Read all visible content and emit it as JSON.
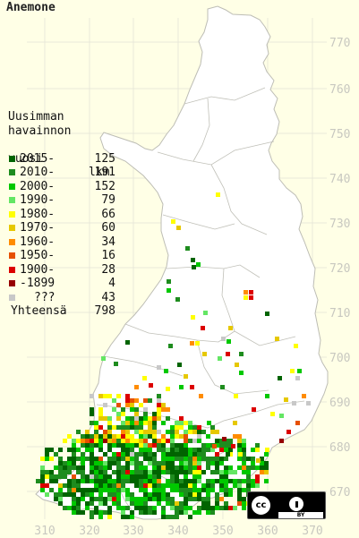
{
  "title": "Anemone",
  "legend": {
    "header": [
      "Uusimman",
      "havainnon",
      "vuosi"
    ],
    "count_header": "lkm",
    "items": [
      {
        "label": "2015-",
        "count": "125",
        "color": "#006400"
      },
      {
        "label": "2010-",
        "count": "191",
        "color": "#1e8c1e"
      },
      {
        "label": "2000-",
        "count": "152",
        "color": "#00c800"
      },
      {
        "label": "1990-",
        "count": "79",
        "color": "#64e664"
      },
      {
        "label": "1980-",
        "count": "66",
        "color": "#ffff00"
      },
      {
        "label": "1970-",
        "count": "60",
        "color": "#e6c800"
      },
      {
        "label": "1960-",
        "count": "34",
        "color": "#ff8c00"
      },
      {
        "label": "1950-",
        "count": "16",
        "color": "#e65000"
      },
      {
        "label": "1900-",
        "count": "28",
        "color": "#dc0000"
      },
      {
        "label": "-1899",
        "count": "4",
        "color": "#960000"
      },
      {
        "label": "???",
        "count": "43",
        "color": "#c8c8c8"
      }
    ],
    "total_label": "Yhteensä",
    "total_count": "798"
  },
  "axes": {
    "x_ticks": [
      "310",
      "320",
      "330",
      "340",
      "350",
      "360",
      "370"
    ],
    "y_ticks": [
      "770",
      "760",
      "750",
      "740",
      "730",
      "720",
      "710",
      "700",
      "690",
      "680",
      "670"
    ]
  },
  "colors": {
    "background": "#ffffe6",
    "land": "#ffffff",
    "grid": "#c8c8c0",
    "border": "#b4b4b4"
  },
  "license_icon": "cc-by-icon"
}
